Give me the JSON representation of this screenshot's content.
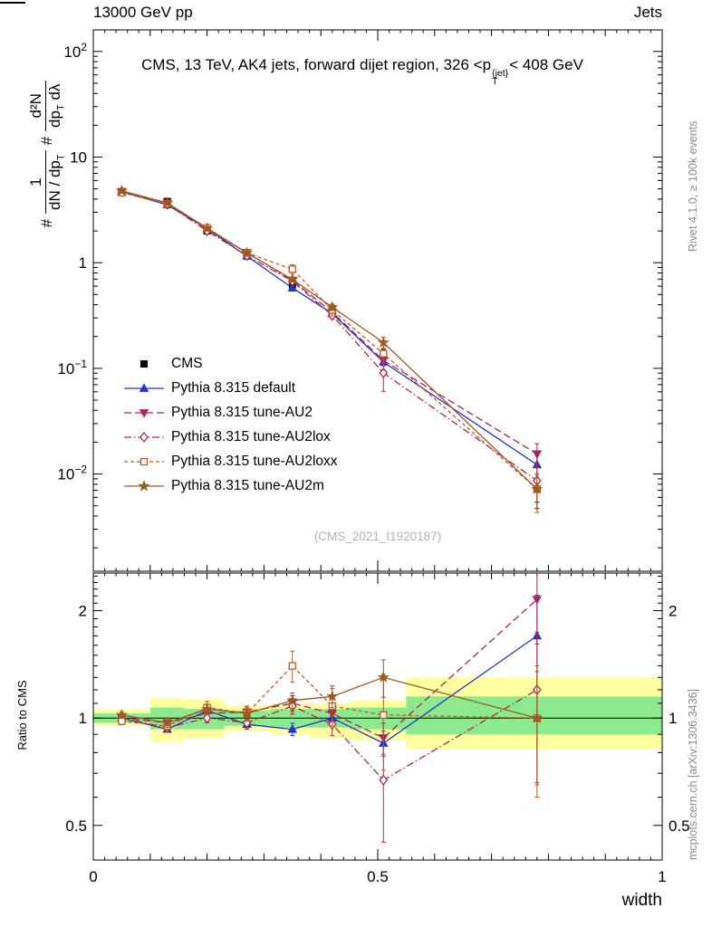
{
  "header": {
    "left": "13000 GeV pp",
    "right": "Jets"
  },
  "side": {
    "top": "Rivet 4.1.0, ≥ 100k events",
    "bottom": "mcplots.cern.ch [arXiv:1306.3436]"
  },
  "watermark": "(CMS_2021_I1920187)",
  "chart_data": {
    "type": "line",
    "title": "CMS, 13 TeV, AK4 jets, forward dijet region, 326 <p_T^{jet}< 408 GeV",
    "title_parts": {
      "pre": "CMS, 13 TeV, AK4 jets, forward dijet region, 326 <p",
      "sup": "{jet}",
      "sub": "T",
      "post": "< 408 GeV"
    },
    "xlabel": "width",
    "ylabel_ratio": "Ratio to CMS",
    "ylabel_main": "# 1/(dN/dp_T) # d²N/(dp_T dλ)",
    "ylabel_parts": {
      "hash": "#",
      "num1": "1",
      "den1": "dN / dp",
      "sub1": "T",
      "num2": "d²N",
      "den2a": "dp",
      "sub2": "T",
      "den2b": " dλ"
    },
    "xlim": [
      0,
      1
    ],
    "ylim_main": [
      0.0012,
      160
    ],
    "ylim_ratio": [
      0.4,
      2.55
    ],
    "grid": false,
    "legend_position": "inside-left",
    "x": [
      0.05,
      0.13,
      0.2,
      0.27,
      0.35,
      0.42,
      0.51,
      0.78
    ],
    "xticks": [
      {
        "v": 0,
        "label": "0"
      },
      {
        "v": 0.5,
        "label": "0.5"
      },
      {
        "v": 1,
        "label": "1"
      }
    ],
    "yticks_main": [
      {
        "v": 100,
        "label": "10^2"
      },
      {
        "v": 10,
        "label": "10"
      },
      {
        "v": 1,
        "label": "1"
      },
      {
        "v": 0.1,
        "label": "10^−1"
      },
      {
        "v": 0.01,
        "label": "10^−2"
      }
    ],
    "yticks_ratio": [
      {
        "v": 2,
        "label": "2"
      },
      {
        "v": 1,
        "label": "1"
      },
      {
        "v": 0.5,
        "label": "0.5"
      }
    ],
    "series": [
      {
        "name": "CMS",
        "color": "#000000",
        "marker": "square",
        "fill": true,
        "line": "none",
        "values": [
          4.7,
          3.8,
          2.0,
          1.2,
          0.62,
          0.33,
          0.135,
          0.0072
        ],
        "relerr": [
          0.03,
          0.04,
          0.04,
          0.05,
          0.06,
          0.07,
          0.12,
          0.25
        ]
      },
      {
        "name": "Pythia 8.315 default",
        "color": "#2233cc",
        "marker": "triangle-up",
        "fill": true,
        "line": "solid",
        "ratio": [
          1.0,
          0.93,
          1.05,
          0.96,
          0.93,
          1.0,
          0.85,
          1.7
        ],
        "relerr": [
          0.02,
          0.02,
          0.03,
          0.03,
          0.04,
          0.05,
          0.08,
          0.3
        ]
      },
      {
        "name": "Pythia 8.315 tune-AU2",
        "color": "#a42560",
        "marker": "triangle-down",
        "fill": true,
        "line": "dashed",
        "ratio": [
          1.0,
          0.97,
          1.03,
          1.04,
          1.1,
          1.03,
          0.88,
          2.15
        ],
        "relerr": [
          0.02,
          0.02,
          0.03,
          0.03,
          0.05,
          0.06,
          0.1,
          0.25
        ]
      },
      {
        "name": "Pythia 8.315 tune-AU2lox",
        "color": "#b02848",
        "marker": "diamond",
        "fill": false,
        "line": "dashdot",
        "ratio": [
          1.0,
          0.94,
          1.0,
          0.97,
          1.08,
          0.96,
          0.67,
          1.2
        ],
        "relerr": [
          0.02,
          0.03,
          0.03,
          0.04,
          0.05,
          0.07,
          0.33,
          0.45
        ]
      },
      {
        "name": "Pythia 8.315 tune-AU2loxx",
        "color": "#c05a20",
        "marker": "square",
        "fill": false,
        "line": "shortdash",
        "ratio": [
          0.98,
          0.95,
          1.07,
          1.03,
          1.4,
          1.08,
          1.02,
          1.0
        ],
        "relerr": [
          0.02,
          0.04,
          0.04,
          0.05,
          0.1,
          0.12,
          0.3,
          0.4
        ]
      },
      {
        "name": "Pythia 8.315 tune-AU2m",
        "color": "#9a5b20",
        "marker": "star",
        "fill": true,
        "line": "solid",
        "ratio": [
          1.02,
          0.97,
          1.06,
          1.03,
          1.12,
          1.15,
          1.3,
          1.0
        ],
        "relerr": [
          0.02,
          0.03,
          0.03,
          0.04,
          0.05,
          0.07,
          0.12,
          0.35
        ]
      }
    ],
    "bands": {
      "edges": [
        0,
        0.1,
        0.16,
        0.23,
        0.31,
        0.38,
        0.45,
        0.55,
        1.0
      ],
      "colors": {
        "yellow": "#ffffa0",
        "green": "#8de98d"
      },
      "yellow": [
        [
          0.95,
          1.06
        ],
        [
          0.86,
          1.14
        ],
        [
          0.88,
          1.13
        ],
        [
          0.92,
          1.08
        ],
        [
          0.9,
          1.1
        ],
        [
          0.88,
          1.1
        ],
        [
          0.87,
          1.12
        ],
        [
          0.82,
          1.3
        ]
      ],
      "green": [
        [
          0.97,
          1.03
        ],
        [
          0.93,
          1.07
        ],
        [
          0.93,
          1.06
        ],
        [
          0.95,
          1.05
        ],
        [
          0.94,
          1.06
        ],
        [
          0.94,
          1.06
        ],
        [
          0.93,
          1.07
        ],
        [
          0.9,
          1.15
        ]
      ]
    }
  }
}
